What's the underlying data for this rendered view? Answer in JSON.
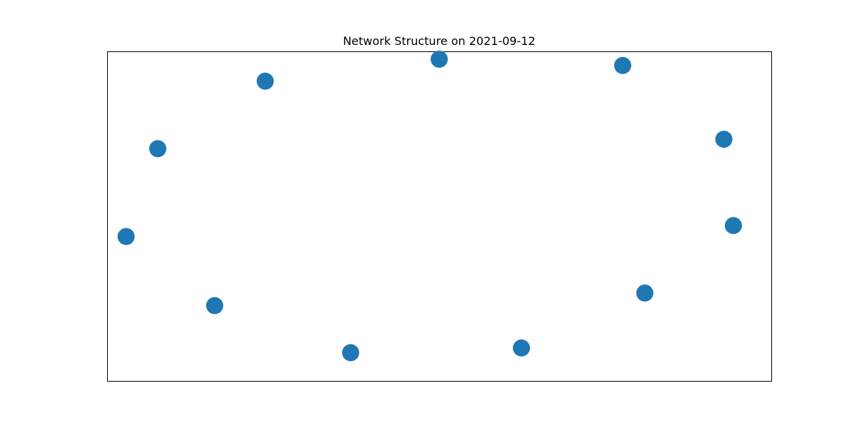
{
  "chart_data": {
    "type": "scatter",
    "title": "Network Structure on 2021-09-12",
    "xlabel": "",
    "ylabel": "",
    "grid": false,
    "axes_ticks": false,
    "xlim": [
      -1.05,
      1.05
    ],
    "ylim": [
      -1.05,
      1.05
    ],
    "node_color": "#1f77b4",
    "nodes": [
      {
        "x": 0.0,
        "y": 1.0
      },
      {
        "x": 0.58,
        "y": 0.96
      },
      {
        "x": 0.9,
        "y": 0.49
      },
      {
        "x": 0.93,
        "y": -0.06
      },
      {
        "x": 0.65,
        "y": -0.49
      },
      {
        "x": 0.26,
        "y": -0.84
      },
      {
        "x": -0.28,
        "y": -0.87
      },
      {
        "x": -0.71,
        "y": -0.57
      },
      {
        "x": -0.99,
        "y": -0.13
      },
      {
        "x": -0.89,
        "y": 0.43
      },
      {
        "x": -0.55,
        "y": 0.86
      }
    ]
  }
}
